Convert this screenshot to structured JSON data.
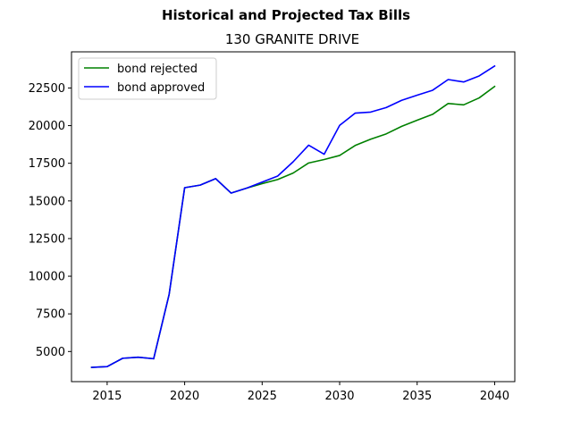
{
  "chart_data": {
    "type": "line",
    "suptitle": "Historical and Projected Tax Bills",
    "title": "130 GRANITE DRIVE",
    "xlabel": "",
    "ylabel": "",
    "xlim": [
      2012.7,
      2041.3
    ],
    "ylim": [
      3000,
      24900
    ],
    "xticks": [
      2015,
      2020,
      2025,
      2030,
      2035,
      2040
    ],
    "yticks": [
      5000,
      7500,
      10000,
      12500,
      15000,
      17500,
      20000,
      22500
    ],
    "grid": false,
    "legend": "top-left",
    "x": [
      2014,
      2015,
      2016,
      2017,
      2018,
      2019,
      2020,
      2021,
      2022,
      2023,
      2024,
      2025,
      2026,
      2027,
      2028,
      2029,
      2030,
      2031,
      2032,
      2033,
      2034,
      2035,
      2036,
      2037,
      2038,
      2039,
      2040
    ],
    "series": [
      {
        "name": "bond rejected",
        "color": "#008000",
        "values": [
          3950,
          4000,
          4550,
          4620,
          4520,
          8800,
          15880,
          16050,
          16480,
          15520,
          15850,
          16150,
          16420,
          16850,
          17520,
          17750,
          18020,
          18680,
          19100,
          19450,
          19950,
          20360,
          20750,
          21470,
          21380,
          21840,
          22600
        ]
      },
      {
        "name": "bond approved",
        "color": "#0000ff",
        "values": [
          3950,
          4000,
          4550,
          4620,
          4520,
          8800,
          15880,
          16050,
          16480,
          15520,
          15850,
          16250,
          16650,
          17600,
          18700,
          18100,
          20020,
          20830,
          20900,
          21200,
          21680,
          22020,
          22350,
          23060,
          22900,
          23300,
          23960
        ]
      }
    ]
  }
}
